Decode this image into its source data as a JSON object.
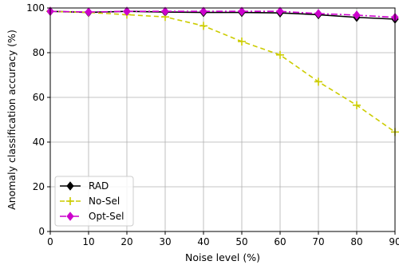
{
  "chart_data": {
    "type": "line",
    "xlabel": "Noise level (%)",
    "ylabel": "Anomaly classification accuracy (%)",
    "xlim": [
      0,
      90
    ],
    "ylim": [
      0,
      100
    ],
    "xticks": [
      0,
      10,
      20,
      30,
      40,
      50,
      60,
      70,
      80,
      90
    ],
    "yticks": [
      0,
      20,
      40,
      60,
      80,
      100
    ],
    "grid": true,
    "legend_position": "lower-left",
    "x": [
      0,
      10,
      20,
      30,
      40,
      50,
      60,
      70,
      80,
      90
    ],
    "series": [
      {
        "name": "RAD",
        "values": [
          98.5,
          98,
          98.5,
          98.2,
          98,
          98,
          97.8,
          97,
          95.8,
          95
        ],
        "color": "#000000",
        "line_style": "solid",
        "marker": "diamond"
      },
      {
        "name": "No-Sel",
        "values": [
          98.5,
          98,
          97,
          96,
          92,
          85,
          79,
          67,
          56.5,
          44.5
        ],
        "color": "#cccc00",
        "line_style": "dashed",
        "marker": "plus"
      },
      {
        "name": "Opt-Sel",
        "values": [
          98.5,
          98.2,
          98.5,
          98.5,
          98.5,
          98.5,
          98.5,
          97.5,
          96.8,
          95.8
        ],
        "color": "#cc00cc",
        "line_style": "dashdot",
        "marker": "diamond"
      }
    ]
  }
}
